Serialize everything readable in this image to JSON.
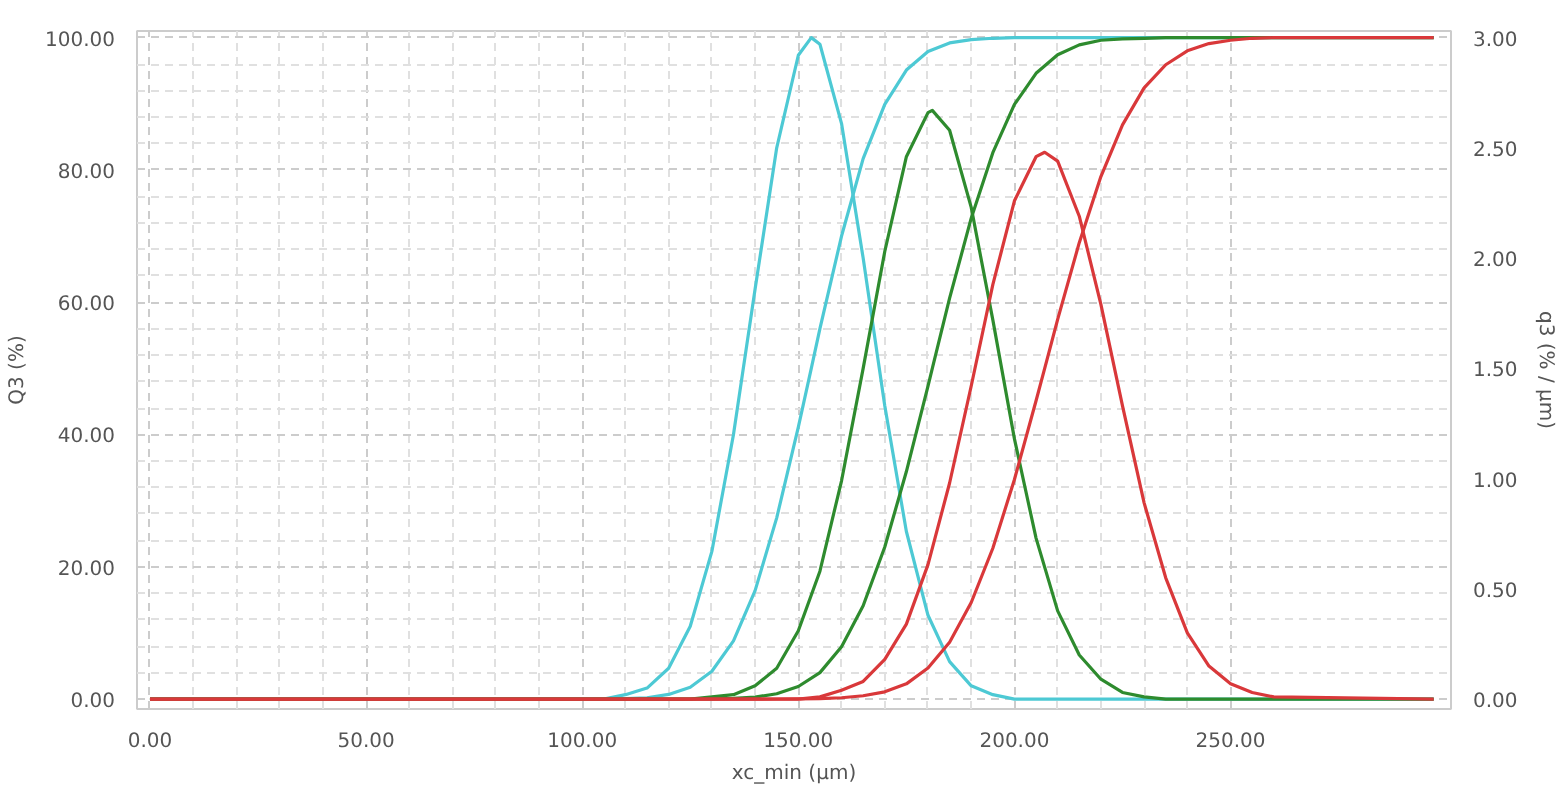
{
  "chart_data": {
    "type": "line",
    "xlabel": "xc_min (µm)",
    "ylabel": "Q3 (%)",
    "y2label": "q3 (% / µm)",
    "xlim": [
      -3,
      301
    ],
    "ylim": [
      -1.5,
      101
    ],
    "y2lim": [
      -0.045,
      3.03
    ],
    "xticks": [
      {
        "value": 0,
        "label": "0.00"
      },
      {
        "value": 50,
        "label": "50.00"
      },
      {
        "value": 100,
        "label": "100.00"
      },
      {
        "value": 150,
        "label": "150.00"
      },
      {
        "value": 200,
        "label": "200.00"
      },
      {
        "value": 250,
        "label": "250.00"
      }
    ],
    "yticks": [
      {
        "value": 0,
        "label": "0.00"
      },
      {
        "value": 20,
        "label": "20.00"
      },
      {
        "value": 40,
        "label": "40.00"
      },
      {
        "value": 60,
        "label": "60.00"
      },
      {
        "value": 80,
        "label": "80.00"
      },
      {
        "value": 100,
        "label": "100.00"
      }
    ],
    "y2ticks": [
      {
        "value": 0,
        "label": "0.00"
      },
      {
        "value": 0.5,
        "label": "0.50"
      },
      {
        "value": 1,
        "label": "1.00"
      },
      {
        "value": 1.5,
        "label": "1.50"
      },
      {
        "value": 2,
        "label": "2.00"
      },
      {
        "value": 2.5,
        "label": "2.50"
      },
      {
        "value": 3,
        "label": "3.00"
      }
    ],
    "grid": true,
    "line_style": "solid",
    "series": [
      {
        "color": "#4dc9d4",
        "x": [
          0,
          100,
          105,
          110,
          115,
          120,
          125,
          130,
          135,
          140,
          145,
          150,
          153,
          155,
          160,
          165,
          170,
          175,
          180,
          185,
          190,
          195,
          200,
          297
        ],
        "values": [
          0,
          0,
          0.02,
          0.06,
          0.2,
          0.7,
          1.8,
          4.2,
          8.8,
          16.4,
          27.4,
          41.1,
          50.0,
          56.0,
          70.0,
          81.7,
          89.9,
          95.1,
          97.9,
          99.2,
          99.7,
          99.9,
          100,
          100
        ]
      },
      {
        "color": "#4dc9d4",
        "axis": "y2",
        "x": [
          0,
          100,
          105,
          110,
          115,
          120,
          125,
          130,
          135,
          140,
          145,
          150,
          153,
          155,
          160,
          165,
          170,
          175,
          180,
          185,
          190,
          195,
          200,
          297
        ],
        "values": [
          0,
          0,
          0,
          0.02,
          0.05,
          0.14,
          0.33,
          0.67,
          1.2,
          1.86,
          2.5,
          2.92,
          3.0,
          2.97,
          2.61,
          2.0,
          1.33,
          0.76,
          0.38,
          0.17,
          0.06,
          0.02,
          0,
          0
        ]
      },
      {
        "color": "#2e8b2e",
        "x": [
          0,
          120,
          125,
          130,
          135,
          140,
          145,
          150,
          155,
          160,
          165,
          170,
          175,
          180,
          181,
          185,
          190,
          195,
          200,
          205,
          210,
          215,
          220,
          225,
          230,
          235,
          297
        ],
        "values": [
          0,
          0,
          0.01,
          0.03,
          0.1,
          0.3,
          0.8,
          1.9,
          4.0,
          7.9,
          14.1,
          23.0,
          34.4,
          47.3,
          50.0,
          60.6,
          72.7,
          82.6,
          89.9,
          94.6,
          97.4,
          98.9,
          99.6,
          99.8,
          99.9,
          100,
          100
        ]
      },
      {
        "color": "#2e8b2e",
        "axis": "y2",
        "x": [
          0,
          120,
          125,
          130,
          135,
          140,
          145,
          150,
          155,
          160,
          165,
          170,
          175,
          180,
          181,
          185,
          190,
          195,
          200,
          205,
          210,
          215,
          220,
          225,
          230,
          235,
          297
        ],
        "values": [
          0,
          0,
          0,
          0.01,
          0.02,
          0.06,
          0.14,
          0.31,
          0.58,
          0.99,
          1.5,
          2.03,
          2.46,
          2.66,
          2.67,
          2.58,
          2.23,
          1.72,
          1.18,
          0.73,
          0.4,
          0.2,
          0.09,
          0.03,
          0.01,
          0,
          0
        ]
      },
      {
        "color": "#d9383a",
        "x": [
          0,
          140,
          145,
          150,
          155,
          160,
          165,
          170,
          175,
          180,
          185,
          190,
          195,
          200,
          205,
          207,
          210,
          215,
          220,
          225,
          230,
          235,
          240,
          245,
          250,
          255,
          260,
          297
        ],
        "values": [
          0,
          0,
          0.01,
          0.02,
          0.06,
          0.2,
          0.5,
          1.1,
          2.3,
          4.7,
          8.6,
          14.6,
          22.8,
          33.2,
          45.1,
          50.0,
          57.4,
          69.0,
          79.0,
          86.8,
          92.4,
          95.9,
          98.0,
          99.1,
          99.6,
          99.9,
          100,
          100
        ]
      },
      {
        "color": "#d9383a",
        "axis": "y2",
        "x": [
          0,
          140,
          145,
          150,
          155,
          160,
          165,
          170,
          175,
          180,
          185,
          190,
          195,
          200,
          205,
          207,
          210,
          215,
          220,
          225,
          230,
          235,
          240,
          245,
          250,
          255,
          260,
          297
        ],
        "values": [
          0,
          0,
          0,
          0,
          0.01,
          0.04,
          0.08,
          0.18,
          0.34,
          0.61,
          0.98,
          1.42,
          1.88,
          2.26,
          2.46,
          2.48,
          2.44,
          2.19,
          1.79,
          1.33,
          0.89,
          0.55,
          0.3,
          0.15,
          0.07,
          0.03,
          0.01,
          0
        ]
      }
    ]
  }
}
